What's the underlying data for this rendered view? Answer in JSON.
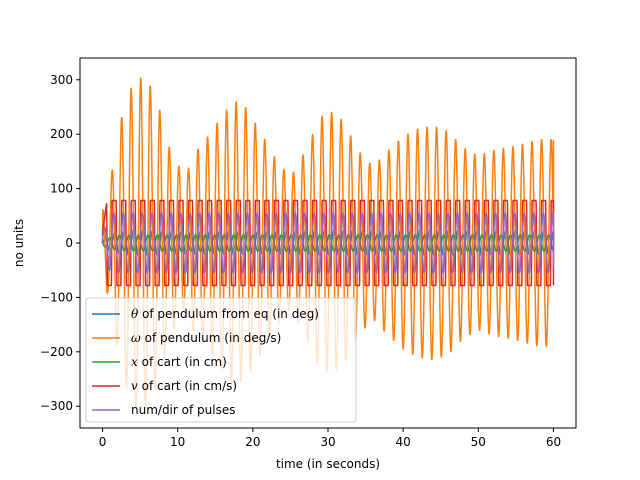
{
  "chart_data": {
    "type": "line",
    "title": "",
    "xlabel": "time (in seconds)",
    "ylabel": "no units",
    "xlim": [
      -3,
      63
    ],
    "ylim": [
      -340,
      340
    ],
    "xticks": [
      0,
      10,
      20,
      30,
      40,
      50,
      60
    ],
    "yticks": [
      -300,
      -200,
      -100,
      0,
      100,
      200,
      300
    ],
    "grid": false,
    "legend_position": "lower-left",
    "t_range": [
      0,
      60
    ],
    "series": [
      {
        "name": "θ of pendulum from eq (in deg)",
        "legend_label": {
          "prefix": "",
          "symbol": "θ",
          "suffix": " of pendulum from eq (in deg)"
        },
        "color": "#1f77b4",
        "waveform": "sine",
        "period_s": 1.27,
        "phase": 0,
        "amplitude_knots": [
          [
            0,
            2
          ],
          [
            1,
            18
          ],
          [
            4,
            25
          ],
          [
            10,
            22
          ],
          [
            20,
            22
          ],
          [
            30,
            24
          ],
          [
            40,
            24
          ],
          [
            50,
            24
          ],
          [
            60,
            22
          ]
        ],
        "end_value": -10
      },
      {
        "name": "ω of pendulum (in deg/s)",
        "legend_label": {
          "prefix": "",
          "symbol": "ω",
          "suffix": " of pendulum (in deg/s)"
        },
        "color": "#ff7f0e",
        "waveform": "sine",
        "period_s": 1.27,
        "phase": 1.5708,
        "amplitude_knots": [
          [
            0,
            60
          ],
          [
            1,
            110
          ],
          [
            2,
            195
          ],
          [
            3,
            260
          ],
          [
            4.5,
            305
          ],
          [
            6,
            300
          ],
          [
            7.5,
            250
          ],
          [
            9,
            170
          ],
          [
            11,
            120
          ],
          [
            12,
            160
          ],
          [
            14,
            195
          ],
          [
            16,
            235
          ],
          [
            17.5,
            262
          ],
          [
            19,
            250
          ],
          [
            21,
            205
          ],
          [
            23,
            155
          ],
          [
            25,
            120
          ],
          [
            27,
            170
          ],
          [
            29,
            232
          ],
          [
            30.5,
            240
          ],
          [
            32,
            225
          ],
          [
            34,
            170
          ],
          [
            36,
            140
          ],
          [
            38,
            170
          ],
          [
            40,
            195
          ],
          [
            42,
            210
          ],
          [
            44,
            215
          ],
          [
            46,
            205
          ],
          [
            48,
            175
          ],
          [
            50,
            160
          ],
          [
            52,
            170
          ],
          [
            55,
            178
          ],
          [
            58,
            190
          ],
          [
            60,
            190
          ]
        ],
        "end_value": 190
      },
      {
        "name": "x of cart (in cm)",
        "legend_label": {
          "prefix": "",
          "symbol": "x",
          "suffix": " of cart (in cm)"
        },
        "color": "#2ca02c",
        "waveform": "sine",
        "period_s": 1.27,
        "phase": 3.1416,
        "amplitude_knots": [
          [
            0,
            6
          ],
          [
            2,
            14
          ],
          [
            10,
            15
          ],
          [
            30,
            15
          ],
          [
            60,
            15
          ]
        ],
        "end_value": 12
      },
      {
        "name": "v of cart  (in cm/s)",
        "legend_label": {
          "prefix": "",
          "symbol": "v",
          "suffix": " of cart  (in cm/s)"
        },
        "color": "#d62728",
        "waveform": "square",
        "period_s": 1.27,
        "phase": 0.2,
        "amplitude_knots": [
          [
            0,
            20
          ],
          [
            0.6,
            78
          ],
          [
            60,
            78
          ]
        ],
        "end_value": -78
      },
      {
        "name": "num/dir of pulses",
        "legend_label": {
          "prefix": "",
          "symbol": "",
          "suffix": "num/dir of pulses"
        },
        "color": "#9467bd",
        "waveform": "sine",
        "period_s": 1.27,
        "phase": 0.4,
        "amplitude_knots": [
          [
            0,
            20
          ],
          [
            1,
            55
          ],
          [
            60,
            55
          ]
        ],
        "end_value": -45
      }
    ]
  }
}
